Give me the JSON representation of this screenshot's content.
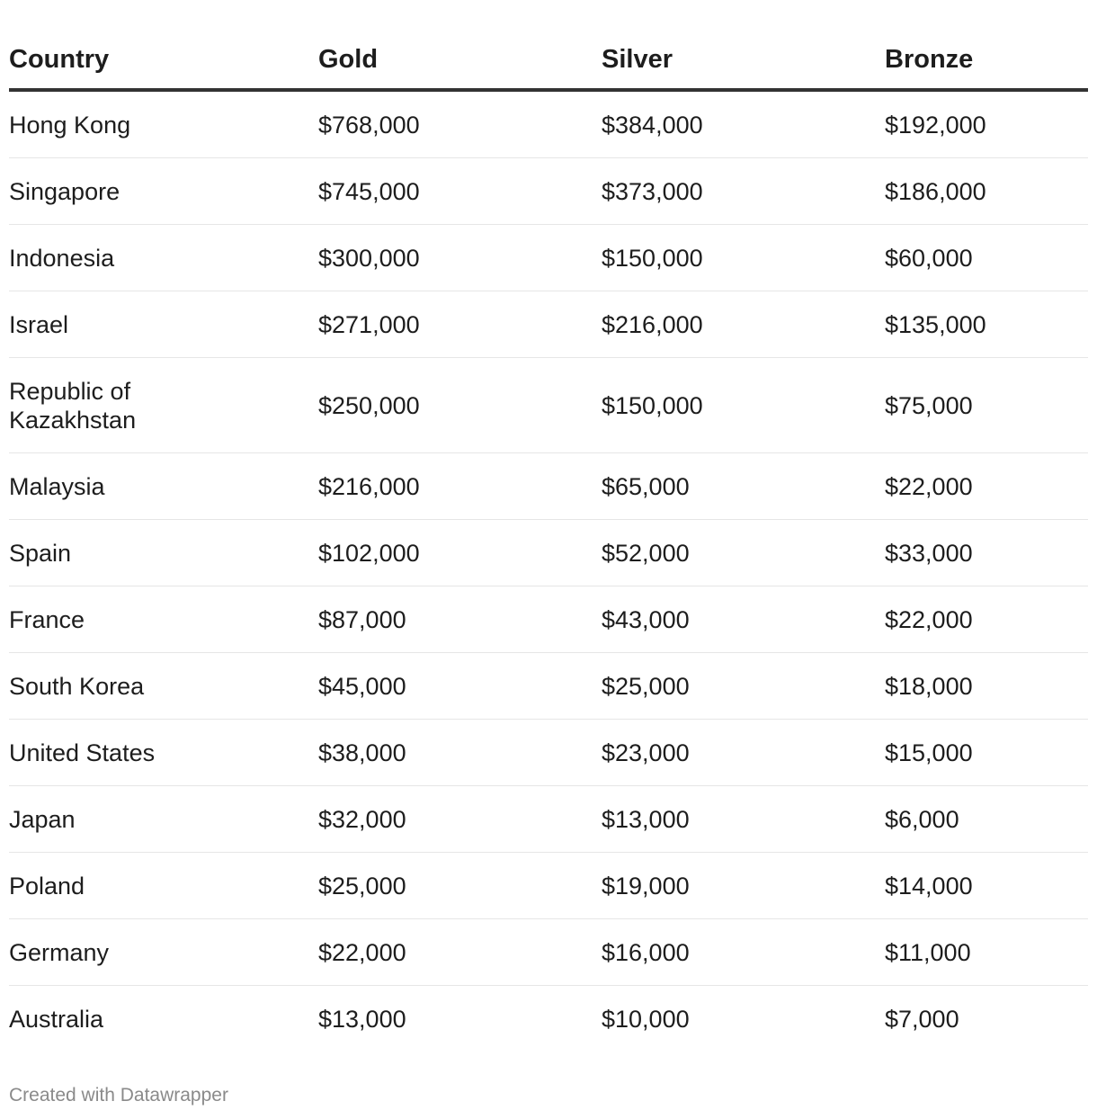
{
  "chart_data": {
    "type": "table",
    "columns": [
      "Country",
      "Gold",
      "Silver",
      "Bronze"
    ],
    "rows": [
      {
        "country": "Hong Kong",
        "gold": "$768,000",
        "silver": "$384,000",
        "bronze": "$192,000"
      },
      {
        "country": "Singapore",
        "gold": "$745,000",
        "silver": "$373,000",
        "bronze": "$186,000"
      },
      {
        "country": "Indonesia",
        "gold": "$300,000",
        "silver": "$150,000",
        "bronze": "$60,000"
      },
      {
        "country": "Israel",
        "gold": "$271,000",
        "silver": "$216,000",
        "bronze": "$135,000"
      },
      {
        "country": "Republic of Kazakhstan",
        "gold": "$250,000",
        "silver": "$150,000",
        "bronze": "$75,000"
      },
      {
        "country": "Malaysia",
        "gold": "$216,000",
        "silver": "$65,000",
        "bronze": "$22,000"
      },
      {
        "country": "Spain",
        "gold": "$102,000",
        "silver": "$52,000",
        "bronze": "$33,000"
      },
      {
        "country": "France",
        "gold": "$87,000",
        "silver": "$43,000",
        "bronze": "$22,000"
      },
      {
        "country": "South Korea",
        "gold": "$45,000",
        "silver": "$25,000",
        "bronze": "$18,000"
      },
      {
        "country": "United States",
        "gold": "$38,000",
        "silver": "$23,000",
        "bronze": "$15,000"
      },
      {
        "country": "Japan",
        "gold": "$32,000",
        "silver": "$13,000",
        "bronze": "$6,000"
      },
      {
        "country": "Poland",
        "gold": "$25,000",
        "silver": "$19,000",
        "bronze": "$14,000"
      },
      {
        "country": "Germany",
        "gold": "$22,000",
        "silver": "$16,000",
        "bronze": "$11,000"
      },
      {
        "country": "Australia",
        "gold": "$13,000",
        "silver": "$10,000",
        "bronze": "$7,000"
      }
    ]
  },
  "footer": {
    "credit": "Created with Datawrapper"
  },
  "colors": {
    "text": "#1d1d1d",
    "header_rule": "#333333",
    "row_rule": "#e6e6e6",
    "footer_text": "#8a8a8a"
  }
}
